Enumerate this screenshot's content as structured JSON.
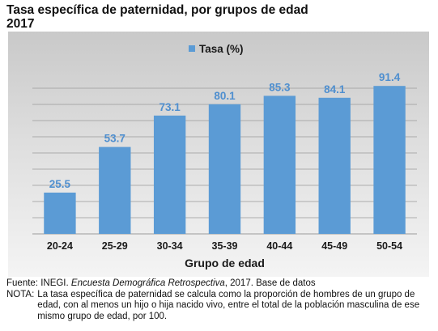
{
  "title_line1": "Tasa específica de paternidad, por grupos de edad",
  "title_line2": "2017",
  "colors": {
    "bar": "#5b9bd5",
    "bar_label": "#4f8fcf",
    "axis_text": "#1a1a1a",
    "gridline": "#9a9a9a"
  },
  "chart_data": {
    "type": "bar",
    "categories": [
      "20-24",
      "25-29",
      "30-34",
      "35-39",
      "40-44",
      "45-49",
      "50-54"
    ],
    "series": [
      {
        "name": "Tasa (%)",
        "values": [
          25.5,
          53.7,
          73.1,
          80.1,
          85.3,
          84.1,
          91.4
        ]
      }
    ],
    "value_labels": [
      "25.5",
      "53.7",
      "73.1",
      "80.1",
      "85.3",
      "84.1",
      "91.4"
    ],
    "xlabel": "Grupo de edad",
    "ylabel": "",
    "ylim": [
      0,
      100
    ],
    "grid": true,
    "legend": "top-center"
  },
  "footer": {
    "source_prefix": "Fuente: INEGI. ",
    "source_title": "Encuesta Demográfica Retrospectiva",
    "source_suffix": ", 2017. Base de datos",
    "note_label": "NOTA:",
    "note_text": "La tasa específica de paternidad se calcula como la proporción de hombres de un grupo de edad, con al menos un hijo o hija nacido vivo, entre el total de la población masculina de ese mismo grupo de edad, por 100."
  }
}
